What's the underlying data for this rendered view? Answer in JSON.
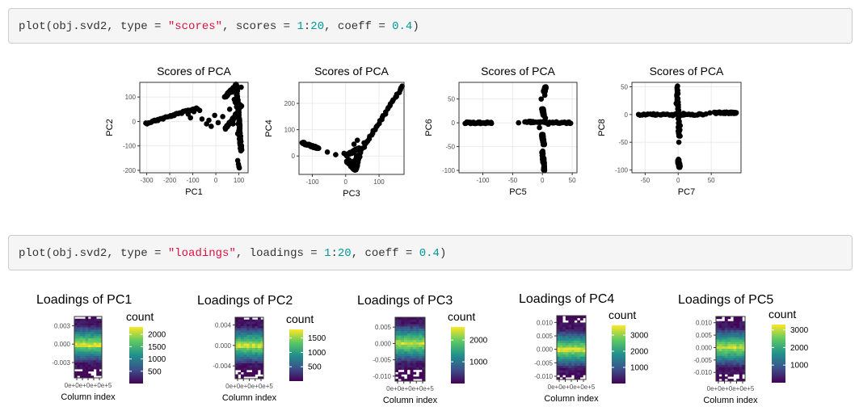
{
  "code": {
    "cmd1": {
      "p1": "plot(obj.svd2, type = ",
      "s1": "\"scores\"",
      "p2": ", scores = ",
      "n1": "1",
      "p3": ":",
      "n2": "20",
      "p4": ", coeff = ",
      "n3": "0.4",
      "p5": ")"
    },
    "cmd2": {
      "p1": "plot(obj.svd2, type = ",
      "s1": "\"loadings\"",
      "p2": ", loadings = ",
      "n1": "1",
      "p3": ":",
      "n2": "20",
      "p4": ", coeff = ",
      "n3": "0.4",
      "p5": ")"
    }
  },
  "chart_data": [
    {
      "type": "scatter",
      "title": "Scores of PCA",
      "xlabel": "PC1",
      "ylabel": "PC2",
      "xlim": [
        -330,
        140
      ],
      "ylim": [
        -210,
        160
      ],
      "xticks": [
        -300,
        -200,
        -100,
        0,
        100
      ],
      "xticklabels": [
        "-300",
        "-200",
        "-100",
        "0",
        "100"
      ],
      "yticks": [
        -200,
        -100,
        0,
        100
      ],
      "yticklabels": [
        "-200",
        "-100",
        "0",
        "100"
      ],
      "segments": [
        {
          "x0": -305,
          "y0": -8,
          "x1": -80,
          "y1": 55
        },
        {
          "x0": 40,
          "y0": 100,
          "x1": 90,
          "y1": 150
        },
        {
          "x0": 40,
          "y0": -30,
          "x1": 100,
          "y1": 40
        },
        {
          "x0": 90,
          "y0": 150,
          "x1": 100,
          "y1": 0
        },
        {
          "x0": 100,
          "y0": 0,
          "x1": 110,
          "y1": -120
        },
        {
          "x0": 85,
          "y0": 80,
          "x1": 110,
          "y1": 60
        }
      ],
      "points": [
        [
          -120,
          30
        ],
        [
          -110,
          15
        ],
        [
          -95,
          40
        ],
        [
          -70,
          45
        ],
        [
          -60,
          10
        ],
        [
          -40,
          -10
        ],
        [
          -30,
          5
        ],
        [
          -20,
          -20
        ],
        [
          -5,
          25
        ],
        [
          10,
          -5
        ],
        [
          30,
          20
        ],
        [
          95,
          -160
        ],
        [
          98,
          -175
        ],
        [
          100,
          -185
        ],
        [
          102,
          -190
        ],
        [
          60,
          50
        ],
        [
          70,
          120
        ],
        [
          80,
          90
        ],
        [
          90,
          60
        ],
        [
          75,
          -10
        ],
        [
          85,
          30
        ],
        [
          95,
          -50
        ],
        [
          105,
          -90
        ],
        [
          110,
          140
        ]
      ]
    },
    {
      "type": "scatter",
      "title": "Scores of PCA",
      "xlabel": "PC3",
      "ylabel": "PC4",
      "xlim": [
        -140,
        175
      ],
      "ylim": [
        -70,
        280
      ],
      "xticks": [
        -100,
        0,
        100
      ],
      "xticklabels": [
        "-100",
        "0",
        "100"
      ],
      "yticks": [
        0,
        100,
        200
      ],
      "yticklabels": [
        "0",
        "100",
        "200"
      ],
      "segments": [
        {
          "x0": -130,
          "y0": 50,
          "x1": -80,
          "y1": 28
        },
        {
          "x0": 20,
          "y0": -30,
          "x1": 170,
          "y1": 265
        },
        {
          "x0": 0,
          "y0": 0,
          "x1": 40,
          "y1": 30
        },
        {
          "x0": 5,
          "y0": -20,
          "x1": 30,
          "y1": -55
        },
        {
          "x0": 30,
          "y0": -50,
          "x1": 40,
          "y1": 0
        }
      ],
      "points": [
        [
          -55,
          15
        ],
        [
          -30,
          5
        ],
        [
          -5,
          10
        ],
        [
          10,
          -15
        ],
        [
          15,
          -40
        ],
        [
          25,
          45
        ],
        [
          35,
          60
        ],
        [
          45,
          20
        ],
        [
          55,
          50
        ]
      ]
    },
    {
      "type": "scatter",
      "title": "Scores of PCA",
      "xlabel": "PC5",
      "ylabel": "PC6",
      "xlim": [
        -140,
        58
      ],
      "ylim": [
        -105,
        85
      ],
      "xticks": [
        -100,
        -50,
        0,
        50
      ],
      "xticklabels": [
        "-100",
        "-50",
        "0",
        "50"
      ],
      "yticks": [
        -100,
        -50,
        0,
        50
      ],
      "yticklabels": [
        "-100",
        "-50",
        "0",
        "50"
      ],
      "segments": [
        {
          "x0": -130,
          "y0": 0,
          "x1": -85,
          "y1": 0
        },
        {
          "x0": -30,
          "y0": 2,
          "x1": 48,
          "y1": 0
        },
        {
          "x0": 2,
          "y0": 15,
          "x1": 0,
          "y1": 30
        },
        {
          "x0": 3,
          "y0": 65,
          "x1": 5,
          "y1": 75
        },
        {
          "x0": 0,
          "y0": -25,
          "x1": 2,
          "y1": -45
        },
        {
          "x0": 0,
          "y0": -60,
          "x1": 3,
          "y1": -100
        }
      ],
      "points": [
        [
          -40,
          0
        ],
        [
          -20,
          3
        ],
        [
          10,
          -3
        ],
        [
          -5,
          -10
        ],
        [
          5,
          10
        ],
        [
          -2,
          50
        ],
        [
          4,
          58
        ]
      ]
    },
    {
      "type": "scatter",
      "title": "Scores of PCA",
      "xlabel": "PC7",
      "ylabel": "PC8",
      "xlim": [
        -70,
        95
      ],
      "ylim": [
        -105,
        58
      ],
      "xticks": [
        -50,
        0,
        50
      ],
      "xticklabels": [
        "-50",
        "0",
        "50"
      ],
      "yticks": [
        -100,
        -50,
        0,
        50
      ],
      "yticklabels": [
        "-100",
        "-50",
        "0",
        "50"
      ],
      "segments": [
        {
          "x0": -60,
          "y0": 0,
          "x1": 38,
          "y1": 0
        },
        {
          "x0": 55,
          "y0": 3,
          "x1": 88,
          "y1": 3
        },
        {
          "x0": -2,
          "y0": 50,
          "x1": 2,
          "y1": -40
        },
        {
          "x0": 0,
          "y0": -82,
          "x1": 2,
          "y1": -95
        }
      ],
      "points": [
        [
          -8,
          -2
        ],
        [
          8,
          2
        ],
        [
          3,
          -20
        ],
        [
          -3,
          20
        ],
        [
          0,
          -30
        ],
        [
          42,
          1
        ],
        [
          48,
          3
        ],
        [
          1,
          -50
        ]
      ]
    },
    {
      "type": "heatmap",
      "title": "Loadings of PC1",
      "xlabel": "Column index",
      "ylabel": "",
      "ytick_values": [
        -0.003,
        0.0,
        0.003
      ],
      "yticklabels": [
        "-0.003",
        "0.000",
        "0.003"
      ],
      "ylim": [
        -0.0055,
        0.0045
      ],
      "xticklabels_text": "0e+0e+0e+0e+5",
      "legend_title": "count",
      "legend_range": [
        0,
        2300
      ],
      "legend_ticks": [
        500,
        1000,
        1500,
        2000
      ],
      "legend_labels": [
        "500",
        "1000",
        "1500",
        "2000"
      ]
    },
    {
      "type": "heatmap",
      "title": "Loadings of PC2",
      "xlabel": "Column index",
      "ylabel": "",
      "ytick_values": [
        -0.004,
        0.0,
        0.004
      ],
      "yticklabels": [
        "-0.004",
        "0.000",
        "0.004"
      ],
      "ylim": [
        -0.0065,
        0.0055
      ],
      "xticklabels_text": "0e+0e+0e+0e+5",
      "legend_title": "count",
      "legend_range": [
        0,
        1800
      ],
      "legend_ticks": [
        500,
        1000,
        1500
      ],
      "legend_labels": [
        "500",
        "1000",
        "1500"
      ]
    },
    {
      "type": "heatmap",
      "title": "Loadings of PC3",
      "xlabel": "Column index",
      "ylabel": "",
      "ytick_values": [
        -0.01,
        -0.005,
        0.0,
        0.005
      ],
      "yticklabels": [
        "-0.010",
        "-0.005",
        "0.000",
        "0.005"
      ],
      "ylim": [
        -0.0115,
        0.008
      ],
      "xticklabels_text": "0e+0e+0e+0e+5",
      "legend_title": "count",
      "legend_range": [
        0,
        2600
      ],
      "legend_ticks": [
        1000,
        2000
      ],
      "legend_labels": [
        "1000",
        "2000"
      ]
    },
    {
      "type": "heatmap",
      "title": "Loadings of PC4",
      "xlabel": "Column index",
      "ylabel": "",
      "ytick_values": [
        -0.01,
        -0.005,
        0.0,
        0.005,
        0.01
      ],
      "yticklabels": [
        "-0.010",
        "-0.005",
        "0.000",
        "0.005",
        "0.010"
      ],
      "ylim": [
        -0.0112,
        0.0125
      ],
      "xticklabels_text": "0e+0e+0e+0e+5",
      "legend_title": "count",
      "legend_range": [
        0,
        3600
      ],
      "legend_ticks": [
        1000,
        2000,
        3000
      ],
      "legend_labels": [
        "1000",
        "2000",
        "3000"
      ]
    },
    {
      "type": "heatmap",
      "title": "Loadings of PC5",
      "xlabel": "Column index",
      "ylabel": "",
      "ytick_values": [
        -0.01,
        -0.005,
        0.0,
        0.005,
        0.01
      ],
      "yticklabels": [
        "-0.010",
        "-0.005",
        "0.000",
        "0.005",
        "0.010"
      ],
      "ylim": [
        -0.0135,
        0.0125
      ],
      "xticklabels_text": "0e+0e+0e+0e+5",
      "legend_title": "count",
      "legend_range": [
        0,
        3300
      ],
      "legend_ticks": [
        1000,
        2000,
        3000
      ],
      "legend_labels": [
        "1000",
        "2000",
        "3000"
      ]
    }
  ]
}
